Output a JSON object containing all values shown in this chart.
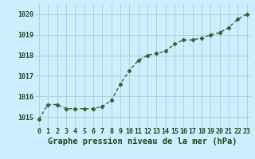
{
  "x": [
    0,
    1,
    2,
    3,
    4,
    5,
    6,
    7,
    8,
    9,
    10,
    11,
    12,
    13,
    14,
    15,
    16,
    17,
    18,
    19,
    20,
    21,
    22,
    23
  ],
  "y": [
    1014.9,
    1015.6,
    1015.6,
    1015.4,
    1015.4,
    1015.4,
    1015.4,
    1015.5,
    1015.8,
    1016.6,
    1017.25,
    1017.75,
    1018.0,
    1018.1,
    1018.2,
    1018.55,
    1018.75,
    1018.75,
    1018.85,
    1019.0,
    1019.1,
    1019.35,
    1019.75,
    1020.0
  ],
  "line_color": "#2d6a2d",
  "marker": "D",
  "marker_size": 2.2,
  "line_width": 1.0,
  "bg_color": "#cceeff",
  "grid_color": "#aacccc",
  "xlabel": "Graphe pression niveau de la mer (hPa)",
  "xlabel_color": "#1a4a1a",
  "xlabel_fontsize": 7.5,
  "tick_color": "#1a4a1a",
  "tick_fontsize": 6.0,
  "ylim": [
    1014.5,
    1020.5
  ],
  "yticks": [
    1015,
    1016,
    1017,
    1018,
    1019,
    1020
  ],
  "xticks": [
    0,
    1,
    2,
    3,
    4,
    5,
    6,
    7,
    8,
    9,
    10,
    11,
    12,
    13,
    14,
    15,
    16,
    17,
    18,
    19,
    20,
    21,
    22,
    23
  ]
}
